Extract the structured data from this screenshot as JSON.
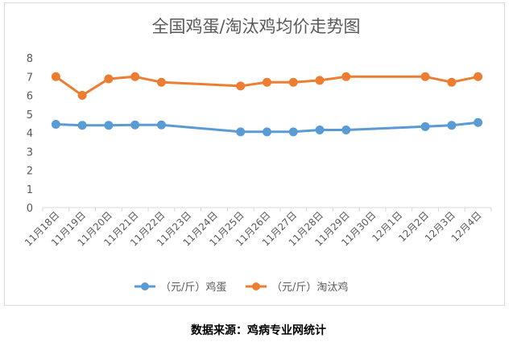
{
  "chart_data": {
    "type": "line",
    "title": "全国鸡蛋/淘汰鸡均价走势图",
    "xlabel": "",
    "ylabel": "",
    "ylim": [
      0,
      8
    ],
    "y_ticks": [
      "0",
      "1",
      "2",
      "3",
      "4",
      "5",
      "6",
      "7",
      "8"
    ],
    "grid": false,
    "legend_position": "bottom",
    "categories": [
      "11月18日",
      "11月19日",
      "11月20日",
      "11月21日",
      "11月22日",
      "11月23日",
      "11月24日",
      "11月25日",
      "11月26日",
      "11月27日",
      "11月28日",
      "11月29日",
      "11月30日",
      "12月1日",
      "12月2日",
      "12月3日",
      "12月4日"
    ],
    "series": [
      {
        "name": "（元/斤）鸡蛋",
        "color": "#5b9bd5",
        "values": [
          4.45,
          4.4,
          4.4,
          4.42,
          4.42,
          null,
          null,
          4.05,
          4.05,
          4.05,
          4.15,
          4.15,
          null,
          null,
          4.33,
          4.4,
          4.55
        ]
      },
      {
        "name": "（元/斤）淘汰鸡",
        "color": "#ed7d31",
        "values": [
          7.0,
          6.0,
          6.88,
          7.0,
          6.7,
          null,
          null,
          6.5,
          6.7,
          6.7,
          6.8,
          7.0,
          null,
          null,
          7.0,
          6.7,
          7.0
        ]
      }
    ]
  },
  "source_note": "数据来源：鸡病专业网统计"
}
